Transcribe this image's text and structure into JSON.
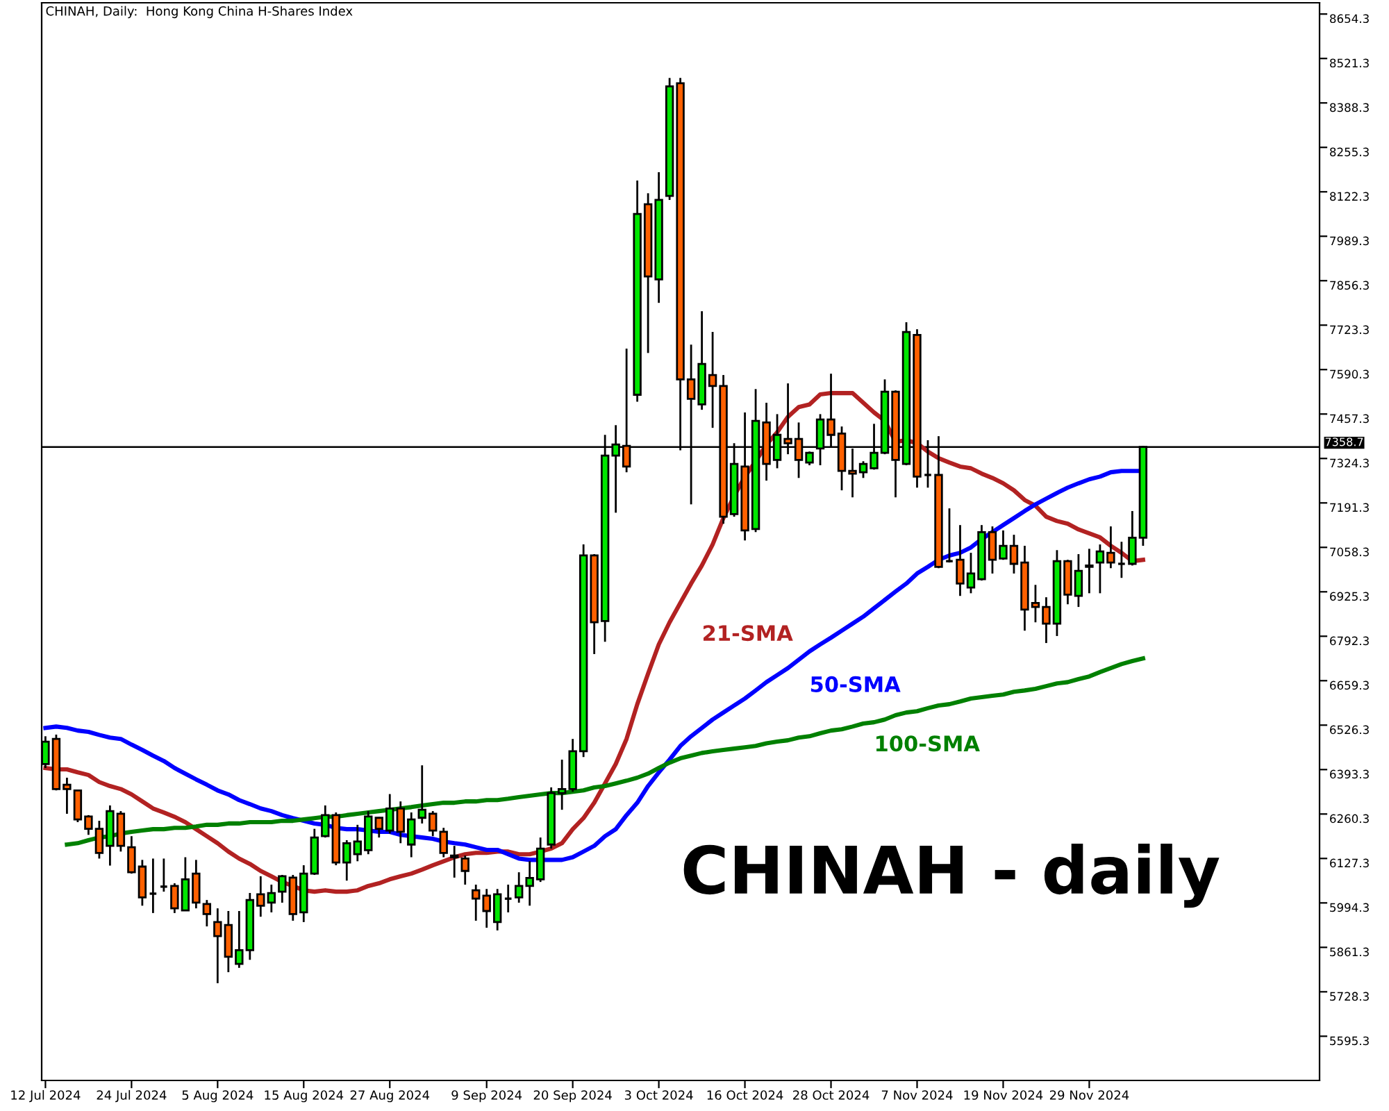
{
  "chart_data": {
    "type": "candlestick",
    "title": "CHINAH, Daily:  Hong Kong China H-Shares Index",
    "categories": [
      "12 Jul 2024",
      null,
      null,
      null,
      null,
      null,
      null,
      null,
      "24 Jul 2024",
      null,
      null,
      null,
      null,
      null,
      null,
      null,
      "5 Aug 2024",
      null,
      null,
      null,
      null,
      null,
      null,
      null,
      "15 Aug 2024",
      null,
      null,
      null,
      null,
      null,
      null,
      null,
      "27 Aug 2024",
      null,
      null,
      null,
      null,
      null,
      null,
      null,
      null,
      "9 Sep 2024",
      null,
      null,
      null,
      null,
      null,
      null,
      null,
      "20 Sep 2024",
      null,
      null,
      null,
      null,
      null,
      null,
      null,
      "3 Oct 2024",
      null,
      null,
      null,
      null,
      null,
      null,
      null,
      "16 Oct 2024",
      null,
      null,
      null,
      null,
      null,
      null,
      null,
      "28 Oct 2024",
      null,
      null,
      null,
      null,
      null,
      null,
      null,
      "7 Nov 2024",
      null,
      null,
      null,
      null,
      null,
      null,
      null,
      "19 Nov 2024",
      null,
      null,
      null,
      null,
      null,
      null,
      null,
      "29 Nov 2024",
      null,
      null,
      null,
      null,
      null
    ],
    "ohlc": [
      [
        6410,
        6493,
        6398,
        6477
      ],
      [
        6485,
        6498,
        6331,
        6335
      ],
      [
        6348,
        6369,
        6261,
        6335
      ],
      [
        6331,
        6333,
        6236,
        6244
      ],
      [
        6253,
        6257,
        6198,
        6216
      ],
      [
        6216,
        6240,
        6127,
        6144
      ],
      [
        6165,
        6286,
        6106,
        6269
      ],
      [
        6261,
        6269,
        6148,
        6165
      ],
      [
        6161,
        6194,
        6082,
        6086
      ],
      [
        6103,
        6123,
        5986,
        6011
      ],
      [
        6022,
        6127,
        5964,
        6022
      ],
      [
        6043,
        6127,
        6028,
        6043
      ],
      [
        6045,
        6053,
        5964,
        5978
      ],
      [
        5972,
        6131,
        5970,
        6065
      ],
      [
        6082,
        6123,
        5978,
        5995
      ],
      [
        5991,
        6003,
        5924,
        5961
      ],
      [
        5937,
        5978,
        5754,
        5895
      ],
      [
        5928,
        5970,
        5787,
        5833
      ],
      [
        5812,
        5970,
        5800,
        5853
      ],
      [
        5853,
        6024,
        5824,
        6003
      ],
      [
        6020,
        6074,
        5953,
        5986
      ],
      [
        5995,
        6049,
        5966,
        6024
      ],
      [
        6028,
        6078,
        5995,
        6074
      ],
      [
        6070,
        6078,
        5941,
        5961
      ],
      [
        5966,
        6107,
        5937,
        6082
      ],
      [
        6082,
        6216,
        6078,
        6190
      ],
      [
        6194,
        6286,
        6190,
        6257
      ],
      [
        6257,
        6265,
        6107,
        6115
      ],
      [
        6115,
        6182,
        6061,
        6173
      ],
      [
        6140,
        6228,
        6119,
        6178
      ],
      [
        6152,
        6269,
        6140,
        6253
      ],
      [
        6249,
        6251,
        6190,
        6216
      ],
      [
        6211,
        6320,
        6202,
        6277
      ],
      [
        6277,
        6298,
        6173,
        6207
      ],
      [
        6169,
        6265,
        6131,
        6244
      ],
      [
        6249,
        6406,
        6232,
        6273
      ],
      [
        6261,
        6269,
        6194,
        6211
      ],
      [
        6207,
        6219,
        6131,
        6144
      ],
      [
        6136,
        6165,
        6070,
        6131
      ],
      [
        6127,
        6136,
        6049,
        6090
      ],
      [
        6032,
        6049,
        5941,
        6007
      ],
      [
        6016,
        6036,
        5920,
        5970
      ],
      [
        5937,
        6036,
        5912,
        6020
      ],
      [
        6007,
        6049,
        5966,
        6007
      ],
      [
        6011,
        6086,
        5995,
        6045
      ],
      [
        6045,
        6119,
        5986,
        6069
      ],
      [
        6065,
        6190,
        6057,
        6157
      ],
      [
        6169,
        6340,
        6157,
        6323
      ],
      [
        6323,
        6423,
        6273,
        6335
      ],
      [
        6335,
        6485,
        6327,
        6448
      ],
      [
        6448,
        7067,
        6431,
        7034
      ],
      [
        7034,
        7038,
        6739,
        6834
      ],
      [
        6838,
        7395,
        6776,
        7333
      ],
      [
        7333,
        7424,
        7162,
        7366
      ],
      [
        7362,
        7653,
        7283,
        7300
      ],
      [
        7515,
        8156,
        7494,
        8056
      ],
      [
        8085,
        8118,
        7640,
        7869
      ],
      [
        7860,
        8181,
        7790,
        8098
      ],
      [
        8110,
        8463,
        8098,
        8438
      ],
      [
        8447,
        8463,
        7349,
        7561
      ],
      [
        7561,
        7665,
        7187,
        7503
      ],
      [
        7486,
        7765,
        7470,
        7607
      ],
      [
        7574,
        7703,
        7416,
        7541
      ],
      [
        7541,
        7574,
        7129,
        7150
      ],
      [
        7158,
        7370,
        7150,
        7308
      ],
      [
        7300,
        7462,
        7079,
        7109
      ],
      [
        7113,
        7532,
        7104,
        7437
      ],
      [
        7432,
        7491,
        7258,
        7308
      ],
      [
        7320,
        7457,
        7295,
        7395
      ],
      [
        7383,
        7549,
        7337,
        7370
      ],
      [
        7383,
        7432,
        7266,
        7320
      ],
      [
        7312,
        7345,
        7304,
        7341
      ],
      [
        7354,
        7457,
        7304,
        7441
      ],
      [
        7441,
        7578,
        7358,
        7395
      ],
      [
        7399,
        7420,
        7229,
        7287
      ],
      [
        7287,
        7354,
        7208,
        7279
      ],
      [
        7283,
        7316,
        7266,
        7308
      ],
      [
        7295,
        7428,
        7291,
        7341
      ],
      [
        7341,
        7561,
        7337,
        7524
      ],
      [
        7524,
        7528,
        7208,
        7320
      ],
      [
        7308,
        7732,
        7304,
        7703
      ],
      [
        7694,
        7711,
        7237,
        7270
      ],
      [
        7275,
        7379,
        7237,
        7275
      ],
      [
        7275,
        7391,
        6996,
        7000
      ],
      [
        7017,
        7175,
        7013,
        7017
      ],
      [
        7021,
        7125,
        6913,
        6950
      ],
      [
        6938,
        7042,
        6921,
        6980
      ],
      [
        6963,
        7125,
        6959,
        7104
      ],
      [
        7104,
        7121,
        6980,
        7021
      ],
      [
        7025,
        7109,
        7021,
        7063
      ],
      [
        7063,
        7096,
        6980,
        7009
      ],
      [
        7013,
        7063,
        6809,
        6872
      ],
      [
        6892,
        6946,
        6834,
        6880
      ],
      [
        6880,
        6909,
        6772,
        6830
      ],
      [
        6830,
        7050,
        6793,
        7017
      ],
      [
        7017,
        7021,
        6888,
        6917
      ],
      [
        6913,
        7038,
        6880,
        6988
      ],
      [
        7000,
        7054,
        6921,
        7004
      ],
      [
        7013,
        7067,
        6921,
        7046
      ],
      [
        7042,
        7121,
        6996,
        7013
      ],
      [
        7009,
        7075,
        6967,
        7009
      ],
      [
        7009,
        7167,
        7004,
        7087
      ],
      [
        7087,
        7362,
        7063,
        7359
      ]
    ],
    "colors": [
      "#00e600",
      "#ff6000",
      "#ff6000",
      "#ff6000",
      "#ff6000",
      "#ff6000",
      "#00e600",
      "#ff6000",
      "#ff6000",
      "#ff6000",
      "#000000",
      "#000000",
      "#ff6000",
      "#00e600",
      "#ff6000",
      "#ff6000",
      "#ff6000",
      "#ff6000",
      "#00e600",
      "#00e600",
      "#ff6000",
      "#00e600",
      "#00e600",
      "#ff6000",
      "#00e600",
      "#00e600",
      "#00e600",
      "#ff6000",
      "#00e600",
      "#00e600",
      "#00e600",
      "#ff6000",
      "#00e600",
      "#ff6000",
      "#00e600",
      "#00e600",
      "#ff6000",
      "#ff6000",
      "#ff6000",
      "#ff6000",
      "#ff6000",
      "#ff6000",
      "#00e600",
      "#000000",
      "#00e600",
      "#00e600",
      "#00e600",
      "#00e600",
      "#00e600",
      "#00e600",
      "#00e600",
      "#ff6000",
      "#00e600",
      "#00e600",
      "#ff6000",
      "#00e600",
      "#ff6000",
      "#00e600",
      "#00e600",
      "#ff6000",
      "#ff6000",
      "#00e600",
      "#ff6000",
      "#ff6000",
      "#00e600",
      "#ff6000",
      "#00e600",
      "#ff6000",
      "#00e600",
      "#ff6000",
      "#ff6000",
      "#00e600",
      "#00e600",
      "#ff6000",
      "#ff6000",
      "#ff6000",
      "#00e600",
      "#00e600",
      "#00e600",
      "#ff6000",
      "#00e600",
      "#ff6000",
      "#000000",
      "#ff6000",
      "#000000",
      "#ff6000",
      "#00e600",
      "#00e600",
      "#ff6000",
      "#00e600",
      "#ff6000",
      "#ff6000",
      "#ff6000",
      "#ff6000",
      "#00e600",
      "#ff6000",
      "#00e600",
      "#00e600",
      "#00e600",
      "#ff6000",
      "#000000",
      "#00e600",
      "#00e600"
    ],
    "series": [
      {
        "type": "line",
        "name": "21-SMA",
        "color": "#b22222",
        "values": [
          6398,
          6394,
          6394,
          6385,
          6377,
          6356,
          6344,
          6335,
          6319,
          6298,
          6277,
          6265,
          6252,
          6236,
          6215,
          6194,
          6173,
          6148,
          6127,
          6111,
          6090,
          6074,
          6057,
          6045,
          6032,
          6028,
          6032,
          6028,
          6028,
          6032,
          6045,
          6053,
          6065,
          6074,
          6082,
          6094,
          6107,
          6119,
          6131,
          6140,
          6144,
          6144,
          6148,
          6148,
          6140,
          6140,
          6148,
          6157,
          6173,
          6215,
          6248,
          6294,
          6352,
          6410,
          6485,
          6589,
          6680,
          6768,
          6834,
          6892,
          6950,
          7004,
          7067,
          7146,
          7212,
          7270,
          7316,
          7366,
          7403,
          7449,
          7478,
          7486,
          7516,
          7520,
          7520,
          7520,
          7491,
          7462,
          7437,
          7374,
          7379,
          7370,
          7345,
          7325,
          7312,
          7300,
          7295,
          7279,
          7266,
          7250,
          7229,
          7200,
          7183,
          7150,
          7137,
          7129,
          7112,
          7100,
          7088,
          7063,
          7042,
          7017,
          7021
        ]
      },
      {
        "type": "line",
        "name": "50-SMA",
        "color": "#0000ff",
        "values": [
          6518,
          6522,
          6518,
          6510,
          6506,
          6497,
          6489,
          6485,
          6468,
          6452,
          6435,
          6419,
          6398,
          6381,
          6364,
          6348,
          6331,
          6319,
          6302,
          6290,
          6277,
          6269,
          6257,
          6248,
          6240,
          6232,
          6228,
          6219,
          6215,
          6215,
          6211,
          6207,
          6207,
          6198,
          6194,
          6190,
          6186,
          6178,
          6173,
          6169,
          6161,
          6153,
          6153,
          6140,
          6127,
          6123,
          6123,
          6123,
          6123,
          6131,
          6148,
          6165,
          6194,
          6215,
          6257,
          6294,
          6344,
          6385,
          6423,
          6464,
          6493,
          6518,
          6543,
          6564,
          6585,
          6606,
          6630,
          6655,
          6676,
          6697,
          6722,
          6747,
          6768,
          6788,
          6809,
          6830,
          6851,
          6876,
          6901,
          6926,
          6950,
          6980,
          7000,
          7021,
          7034,
          7042,
          7058,
          7083,
          7104,
          7125,
          7146,
          7167,
          7187,
          7204,
          7221,
          7237,
          7250,
          7262,
          7270,
          7283,
          7287,
          7287,
          7287
        ]
      },
      {
        "type": "line",
        "name": "100-SMA",
        "color": "#008000",
        "values": [
          null,
          null,
          6169,
          6173,
          6182,
          6190,
          6194,
          6202,
          6207,
          6211,
          6215,
          6215,
          6219,
          6219,
          6223,
          6228,
          6228,
          6232,
          6232,
          6236,
          6236,
          6236,
          6240,
          6240,
          6244,
          6248,
          6252,
          6252,
          6257,
          6261,
          6265,
          6269,
          6273,
          6277,
          6281,
          6286,
          6290,
          6294,
          6294,
          6298,
          6298,
          6302,
          6302,
          6306,
          6311,
          6315,
          6319,
          6323,
          6323,
          6327,
          6331,
          6340,
          6344,
          6352,
          6360,
          6369,
          6381,
          6398,
          6414,
          6427,
          6435,
          6443,
          6448,
          6452,
          6456,
          6460,
          6464,
          6472,
          6477,
          6481,
          6489,
          6493,
          6502,
          6510,
          6514,
          6522,
          6531,
          6535,
          6543,
          6556,
          6564,
          6568,
          6577,
          6585,
          6589,
          6597,
          6606,
          6610,
          6614,
          6618,
          6626,
          6630,
          6635,
          6643,
          6651,
          6655,
          6664,
          6672,
          6685,
          6697,
          6709,
          6718,
          6726
        ]
      }
    ],
    "ylim": [
      5463,
      8688
    ],
    "yticks": [
      5595.3,
      5728.3,
      5861.3,
      5994.3,
      6127.3,
      6260.3,
      6393.3,
      6526.3,
      6659.3,
      6792.3,
      6925.3,
      7058.3,
      7191.3,
      7324.3,
      7457.3,
      7590.3,
      7723.3,
      7856.3,
      7989.3,
      8122.3,
      8255.3,
      8388.3,
      8521.3,
      8654.3
    ],
    "ref_lines": [
      {
        "axis": "y",
        "value": 7358.7,
        "label": "7358.7",
        "color": "#000000"
      }
    ],
    "annotations": [
      "CHINAH - daily"
    ],
    "grid": false,
    "legend": false
  }
}
